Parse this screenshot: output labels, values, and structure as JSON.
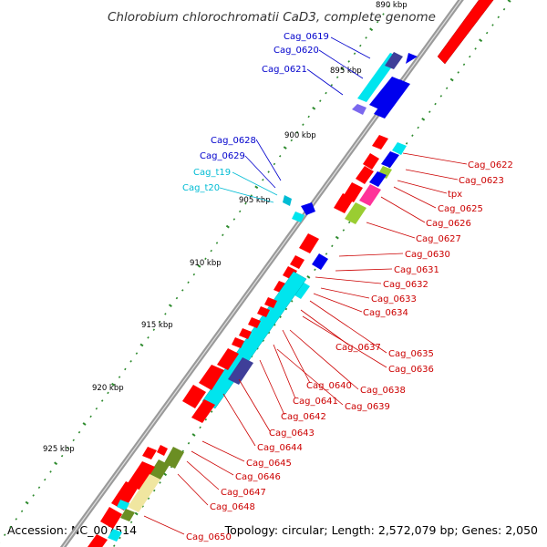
{
  "title": "Chlorobium chlorochromatii CaD3, complete genome",
  "footer": {
    "accession": "Accession: NC_007514",
    "topology": "Topology: circular; Length: 2,572,079 bp; Genes: 2,050"
  },
  "colors": {
    "backbone": "#a0a0a0",
    "tick_dots": "#2e8b2e",
    "label_blue": "#0000cc",
    "label_cyan": "#00bcd4",
    "label_red": "#cc0000",
    "gene_red": "#ff0000",
    "gene_blue": "#0000ee",
    "gene_cyan": "#00e5ee",
    "gene_navy": "#3f3f99",
    "gene_olive": "#7a9a2a",
    "gene_pink": "#ff3399",
    "gene_khaki": "#f0e6a0"
  },
  "kbp_labels": [
    "890 kbp",
    "895 kbp",
    "900 kbp",
    "905 kbp",
    "910 kbp",
    "915 kbp",
    "920 kbp",
    "925 kbp"
  ],
  "left_labels": [
    {
      "text": "Cag_0619",
      "color": "blue"
    },
    {
      "text": "Cag_0620",
      "color": "blue"
    },
    {
      "text": "Cag_0621",
      "color": "blue"
    },
    {
      "text": "Cag_0628",
      "color": "blue"
    },
    {
      "text": "Cag_0629",
      "color": "blue"
    },
    {
      "text": "Cag_t19",
      "color": "cyan"
    },
    {
      "text": "Cag_t20",
      "color": "cyan"
    }
  ],
  "right_labels": [
    {
      "text": "Cag_0622"
    },
    {
      "text": "Cag_0623"
    },
    {
      "text": "tpx"
    },
    {
      "text": "Cag_0625"
    },
    {
      "text": "Cag_0626"
    },
    {
      "text": "Cag_0627"
    },
    {
      "text": "Cag_0630"
    },
    {
      "text": "Cag_0631"
    },
    {
      "text": "Cag_0632"
    },
    {
      "text": "Cag_0633"
    },
    {
      "text": "Cag_0634"
    },
    {
      "text": "Cag_0637"
    },
    {
      "text": "Cag_0635"
    },
    {
      "text": "Cag_0636"
    },
    {
      "text": "Cag_0640"
    },
    {
      "text": "Cag_0638"
    },
    {
      "text": "Cag_0641"
    },
    {
      "text": "Cag_0639"
    },
    {
      "text": "Cag_0642"
    },
    {
      "text": "Cag_0643"
    },
    {
      "text": "Cag_0644"
    },
    {
      "text": "Cag_0645"
    },
    {
      "text": "Cag_0646"
    },
    {
      "text": "Cag_0647"
    },
    {
      "text": "Cag_0648"
    },
    {
      "text": "Cag_0650"
    }
  ]
}
